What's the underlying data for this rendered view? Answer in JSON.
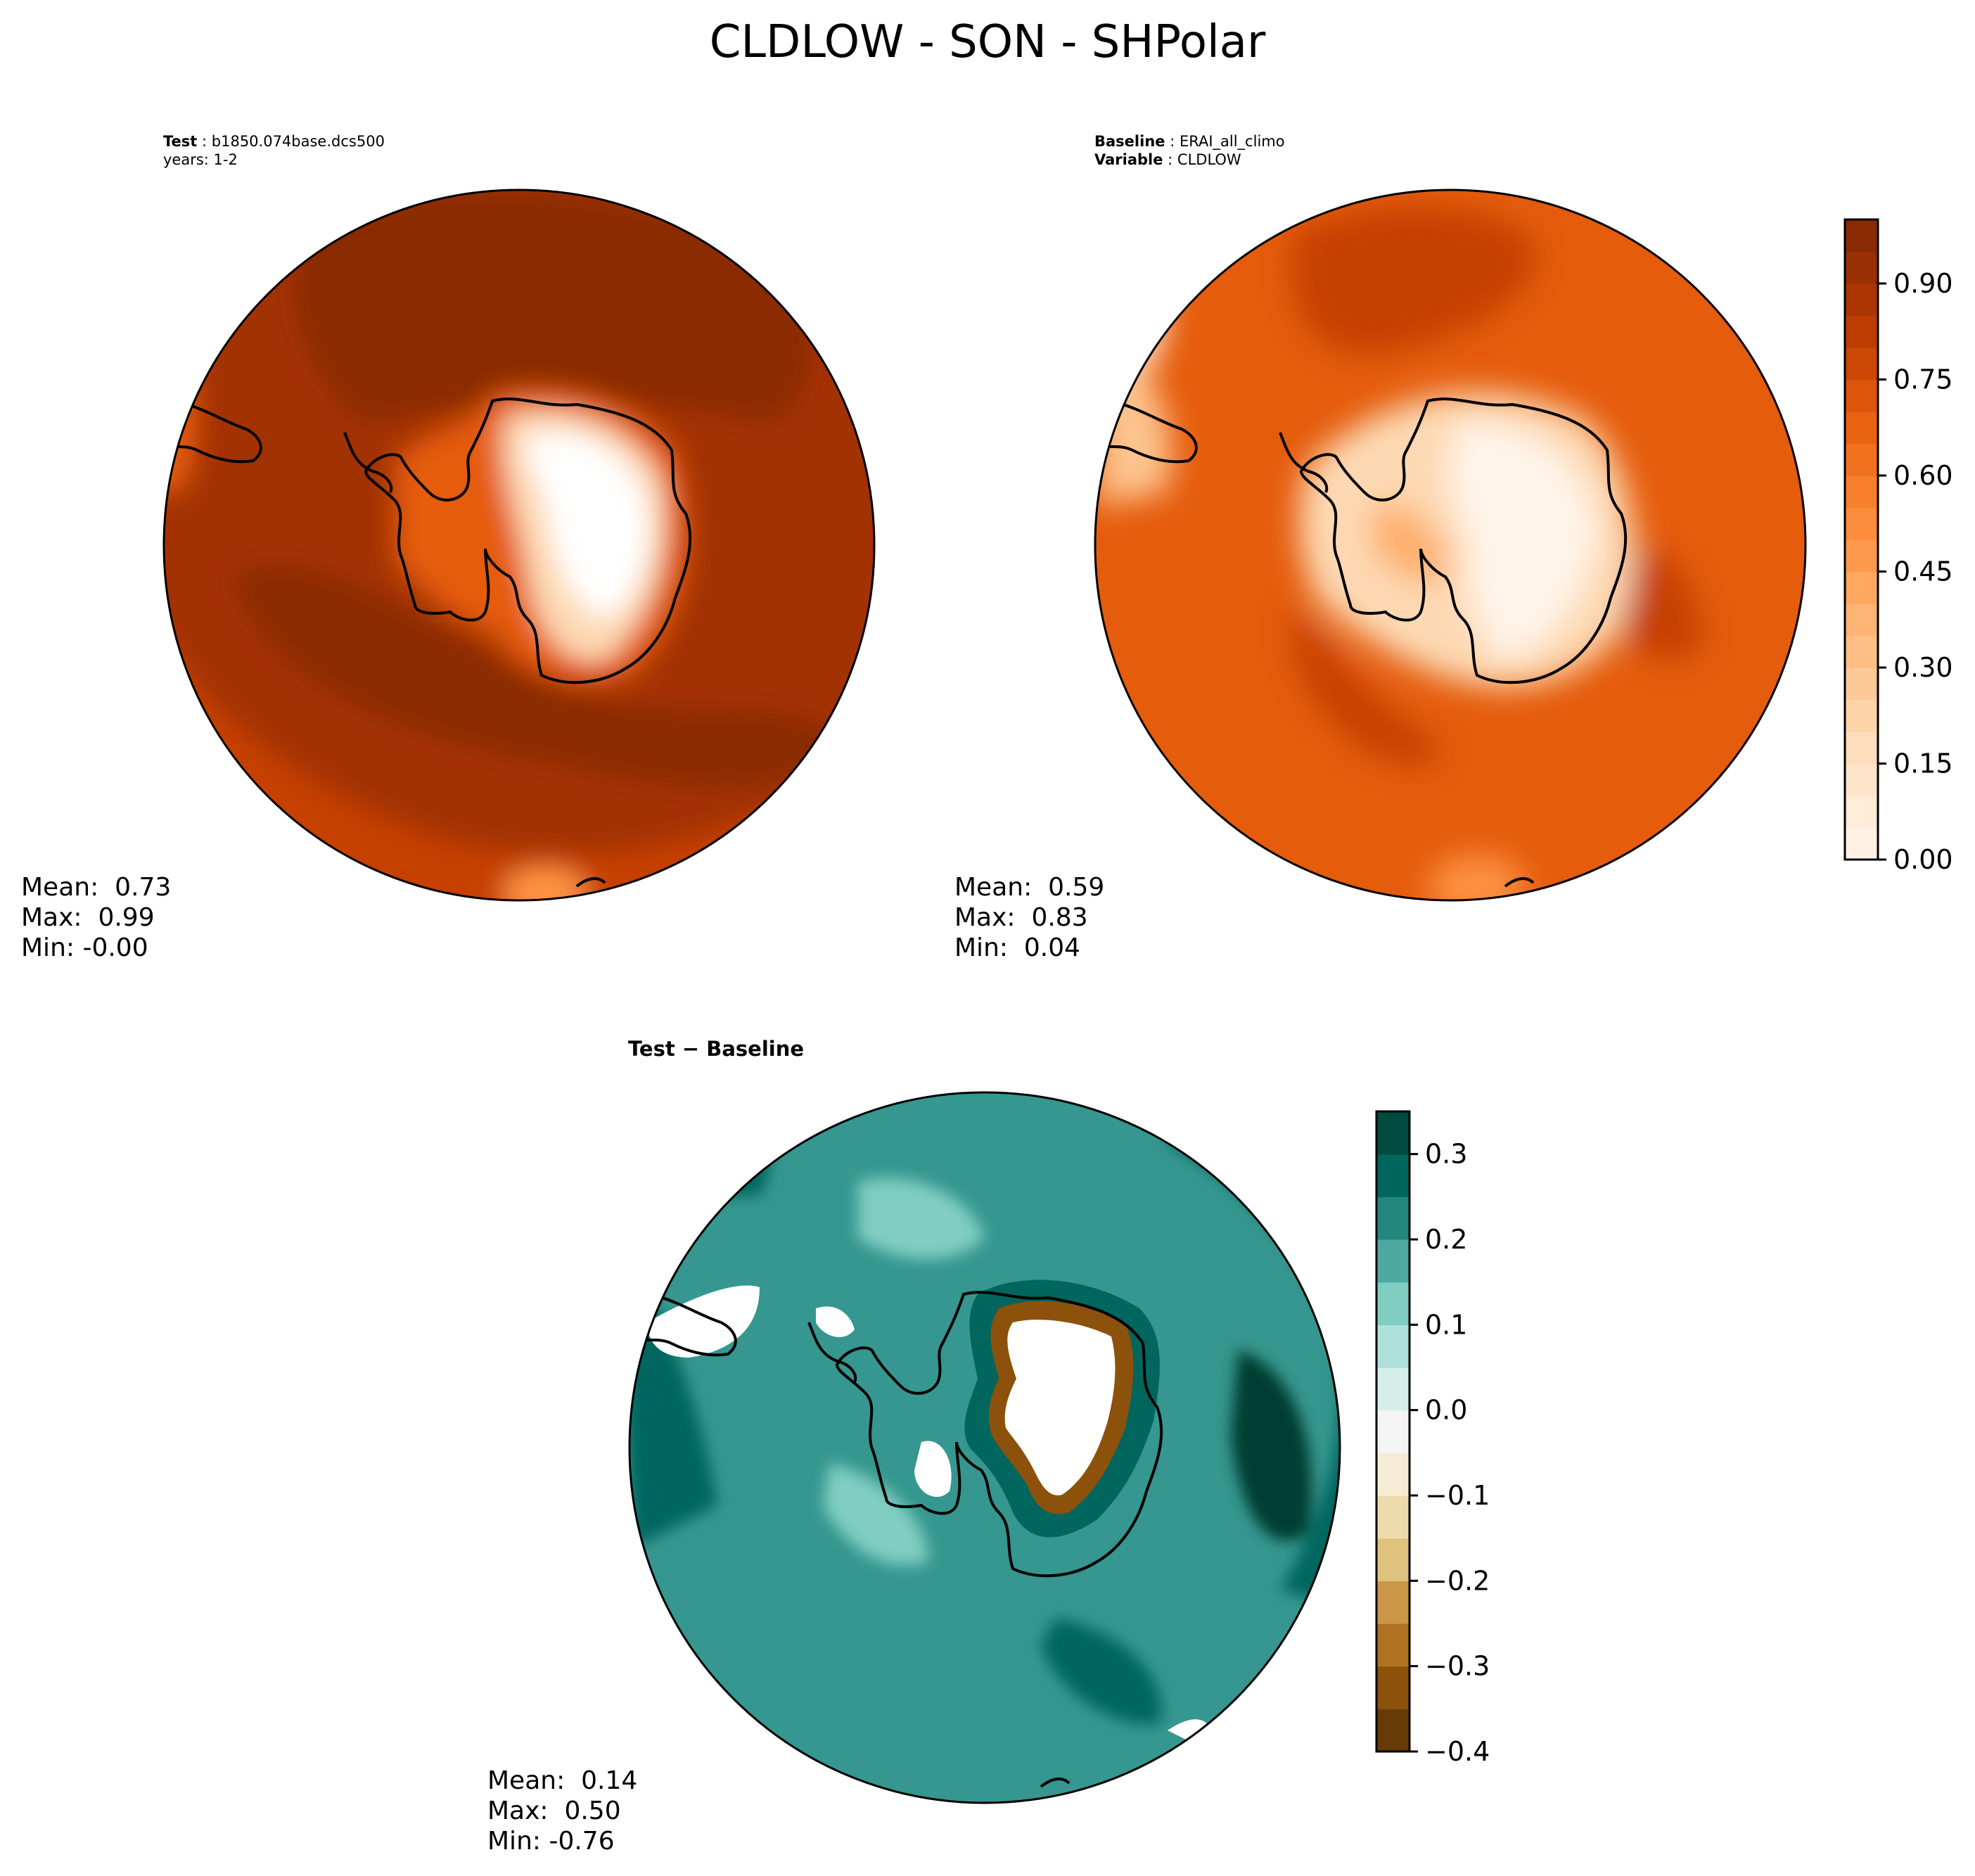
{
  "figure": {
    "title": "CLDLOW - SON - SHPolar"
  },
  "colors": {
    "oranges": [
      "#fff5eb",
      "#fee8d2",
      "#fdd9b3",
      "#fdc48f",
      "#fdae6b",
      "#fd9243",
      "#f67824",
      "#e55c0c",
      "#c64102",
      "#a33203",
      "#7f2704"
    ],
    "diff": [
      "#543005",
      "#8c510a",
      "#bf812d",
      "#dfc27d",
      "#f6e8c3",
      "#f5f5f5",
      "#c7eae5",
      "#80cdc1",
      "#35978f",
      "#01665e",
      "#003c30"
    ],
    "land_line": "#000000"
  },
  "chart_data": [
    {
      "type": "heatmap",
      "projection": "south-polar-stereographic",
      "panel": "test",
      "meta": {
        "test_label": "Test",
        "test_value": "b1850.074base.dcs500",
        "years_label": "years: 1-2"
      },
      "stats": {
        "mean": "Mean:  0.73",
        "max": "Max:  0.99",
        "min": "Min: -0.00"
      },
      "value_range": [
        0.0,
        1.0
      ]
    },
    {
      "type": "heatmap",
      "projection": "south-polar-stereographic",
      "panel": "baseline",
      "meta": {
        "baseline_label": "Baseline",
        "baseline_value": "ERAI_all_climo",
        "variable_label": "Variable",
        "variable_value": "CLDLOW"
      },
      "stats": {
        "mean": "Mean:  0.59",
        "max": "Max:  0.83",
        "min": "Min:  0.04"
      },
      "value_range": [
        0.0,
        1.0
      ],
      "colorbar": {
        "min": 0.0,
        "max": 1.0,
        "ticks": [
          0.0,
          0.15,
          0.3,
          0.45,
          0.6,
          0.75,
          0.9
        ],
        "tick_labels": [
          "0.00",
          "0.15",
          "0.30",
          "0.45",
          "0.60",
          "0.75",
          "0.90"
        ],
        "levels": 20
      }
    },
    {
      "type": "heatmap",
      "projection": "south-polar-stereographic",
      "panel": "difference",
      "title": "Test − Baseline",
      "stats": {
        "mean": "Mean:  0.14",
        "max": "Max:  0.50",
        "min": "Min: -0.76"
      },
      "value_range": [
        -0.4,
        0.35
      ],
      "colorbar": {
        "min": -0.4,
        "max": 0.35,
        "ticks": [
          -0.4,
          -0.3,
          -0.2,
          -0.1,
          0.0,
          0.1,
          0.2,
          0.3
        ],
        "tick_labels": [
          "−0.4",
          "−0.3",
          "−0.2",
          "−0.1",
          "0.0",
          "0.1",
          "0.2",
          "0.3"
        ],
        "levels": 15
      }
    }
  ]
}
